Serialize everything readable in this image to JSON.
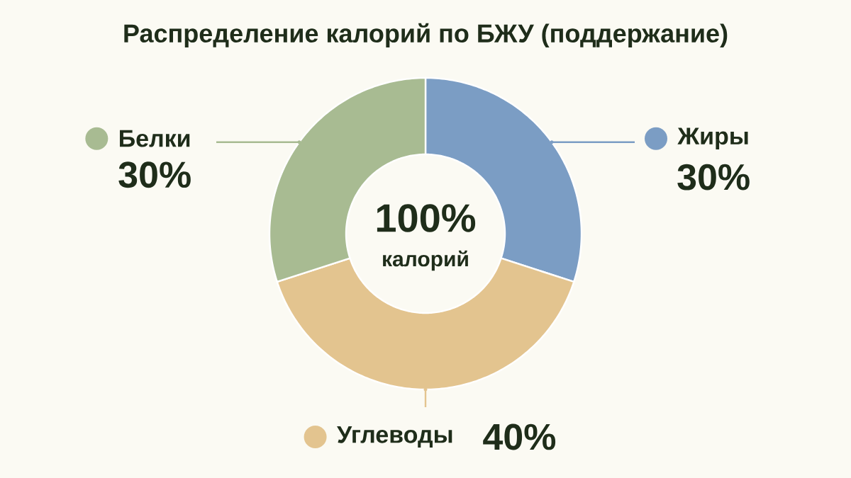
{
  "chart_data": {
    "type": "donut",
    "title": "Распределение калорий по БЖУ (поддержание)",
    "categories": [
      "Жиры",
      "Углеводы",
      "Белки"
    ],
    "values": [
      30,
      40,
      30
    ],
    "colors": [
      "#7b9dc4",
      "#e3c48f",
      "#a8bb92"
    ],
    "value_labels": [
      "30%",
      "40%",
      "30%"
    ],
    "annotations": [
      "100%",
      "калорий"
    ],
    "legend": "right"
  }
}
